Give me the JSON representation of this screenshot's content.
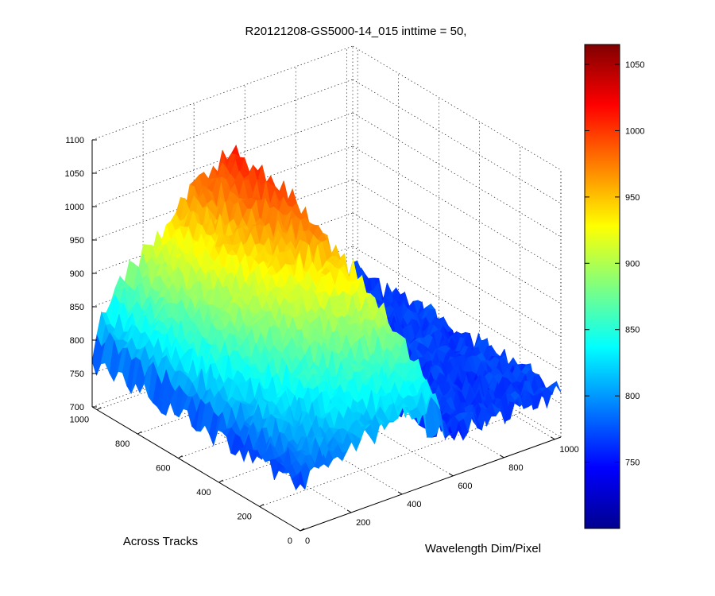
{
  "chart_data": {
    "type": "surface3d",
    "title": "R20121208-GS5000-14_015 inttime = 50,",
    "xlabel": "Wavelength Dim/Pixel",
    "ylabel": "Across Tracks",
    "zlabel": "",
    "xlim": [
      0,
      1024
    ],
    "ylim": [
      0,
      1024
    ],
    "zlim": [
      700,
      1100
    ],
    "clim": [
      700,
      1065
    ],
    "colormap": "jet",
    "grid": true,
    "x_ticks": [
      0,
      200,
      400,
      600,
      800,
      1000
    ],
    "x_tick_labels": [
      "0",
      "200",
      "400",
      "600",
      "800",
      "1000"
    ],
    "y_ticks": [
      0,
      200,
      400,
      600,
      800,
      1000
    ],
    "y_tick_labels": [
      "0",
      "200",
      "400",
      "600",
      "800",
      "1000"
    ],
    "z_ticks": [
      700,
      750,
      800,
      850,
      900,
      950,
      1000,
      1050,
      1100
    ],
    "z_tick_labels": [
      "700",
      "750",
      "800",
      "850",
      "900",
      "950",
      "1000",
      "1050",
      "1100"
    ],
    "colorbar_ticks": [
      750,
      800,
      850,
      900,
      950,
      1000,
      1050
    ],
    "colorbar_tick_labels": [
      "750",
      "800",
      "850",
      "900",
      "950",
      "1000",
      "1050"
    ],
    "surface": {
      "background_level": 765,
      "noise_amplitude": 18,
      "signal_region": {
        "wavelength_pixel_range": [
          0,
          560
        ],
        "across_track_range": [
          0,
          1000
        ]
      },
      "peak_value": 1010,
      "peak_at": {
        "wavelength_pixel": 560,
        "across_track": 1000
      }
    }
  }
}
